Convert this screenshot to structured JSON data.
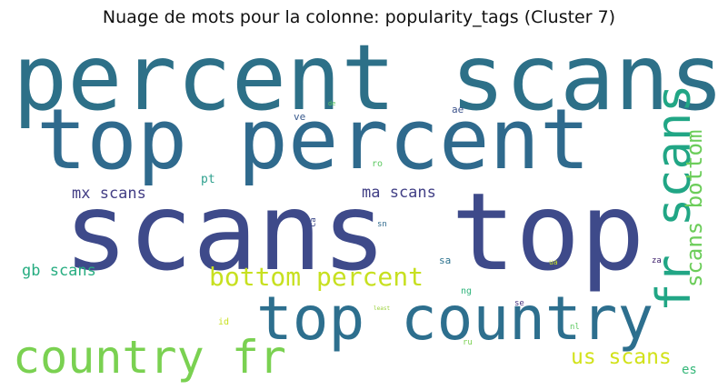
{
  "title": "Nuage de mots pour la colonne: popularity_tags (Cluster 7)",
  "words": [
    {
      "text": "percent scans",
      "color": "#2d7088"
    },
    {
      "text": "top percent",
      "color": "#2f6a8d"
    },
    {
      "text": "scans top",
      "color": "#3e4a8a"
    },
    {
      "text": "top country",
      "color": "#2d6f8e"
    },
    {
      "text": "country fr",
      "color": "#7ad151"
    },
    {
      "text": "fr scans",
      "color": "#21a685"
    },
    {
      "text": "scans bottom",
      "color": "#6ccd5a"
    },
    {
      "text": "bottom percent",
      "color": "#c7e020"
    },
    {
      "text": "mx scans",
      "color": "#433e85"
    },
    {
      "text": "ma scans",
      "color": "#424086"
    },
    {
      "text": "gb scans",
      "color": "#27ad81"
    },
    {
      "text": "us scans",
      "color": "#d2e21b"
    },
    {
      "text": "es",
      "color": "#35b779"
    },
    {
      "text": "pt",
      "color": "#2c9f8d"
    },
    {
      "text": "ve",
      "color": "#38598c"
    },
    {
      "text": "ae",
      "color": "#3b528b"
    },
    {
      "text": "de",
      "color": "#5ec962"
    },
    {
      "text": "ro",
      "color": "#5ec962"
    },
    {
      "text": "sn",
      "color": "#306a8e"
    },
    {
      "text": "ca",
      "color": "#3e4a89"
    },
    {
      "text": "sa",
      "color": "#2c728e"
    },
    {
      "text": "ua",
      "color": "#c2df23"
    },
    {
      "text": "za",
      "color": "#3b1c6a"
    },
    {
      "text": "ng",
      "color": "#2fb47c"
    },
    {
      "text": "se",
      "color": "#46327e"
    },
    {
      "text": "id",
      "color": "#c8e020"
    },
    {
      "text": "nl",
      "color": "#5ec962"
    },
    {
      "text": "ru",
      "color": "#7ad151"
    },
    {
      "text": "least",
      "color": "#9ad13a"
    }
  ]
}
